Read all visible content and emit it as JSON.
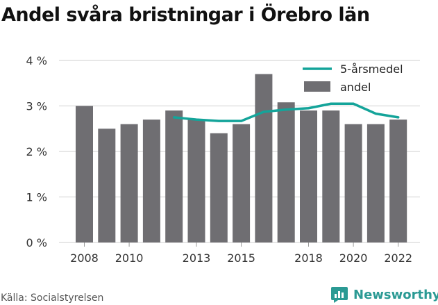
{
  "title": "Andel svåra bristningar i Örebro län",
  "source": "Källa: Socialstyrelsen",
  "brand": {
    "name": "Newsworthy",
    "icon": "newsworthy-logo-icon"
  },
  "colors": {
    "bar": "#6f6e72",
    "line": "#14a49a",
    "grid": "#cfcfcf",
    "brand": "#2b9a94"
  },
  "chart_data": {
    "type": "bar",
    "title": "Andel svåra bristningar i Örebro län",
    "x": [
      2008,
      2009,
      2010,
      2011,
      2012,
      2013,
      2014,
      2015,
      2016,
      2017,
      2018,
      2019,
      2020,
      2021,
      2022
    ],
    "x_tick_labels": [
      "2008",
      "2010",
      "2013",
      "2015",
      "2018",
      "2020",
      "2022"
    ],
    "y_ticks": [
      "0 %",
      "1 %",
      "2 %",
      "3 %",
      "4 %"
    ],
    "ylim": [
      0,
      4
    ],
    "grid": true,
    "legend_position": "top-right",
    "series": [
      {
        "name": "5-årsmedel",
        "type": "line",
        "x": [
          2012,
          2013,
          2014,
          2015,
          2016,
          2017,
          2018,
          2019,
          2020,
          2021,
          2022
        ],
        "values": [
          2.75,
          2.7,
          2.67,
          2.67,
          2.87,
          2.92,
          2.95,
          3.05,
          3.05,
          2.83,
          2.75
        ]
      },
      {
        "name": "andel",
        "type": "bar",
        "x": [
          2008,
          2009,
          2010,
          2011,
          2012,
          2013,
          2014,
          2015,
          2016,
          2017,
          2018,
          2019,
          2020,
          2021,
          2022
        ],
        "values": [
          3.0,
          2.5,
          2.6,
          2.7,
          2.9,
          2.7,
          2.4,
          2.6,
          3.7,
          3.08,
          2.9,
          2.9,
          2.6,
          2.6,
          2.7
        ]
      }
    ]
  }
}
